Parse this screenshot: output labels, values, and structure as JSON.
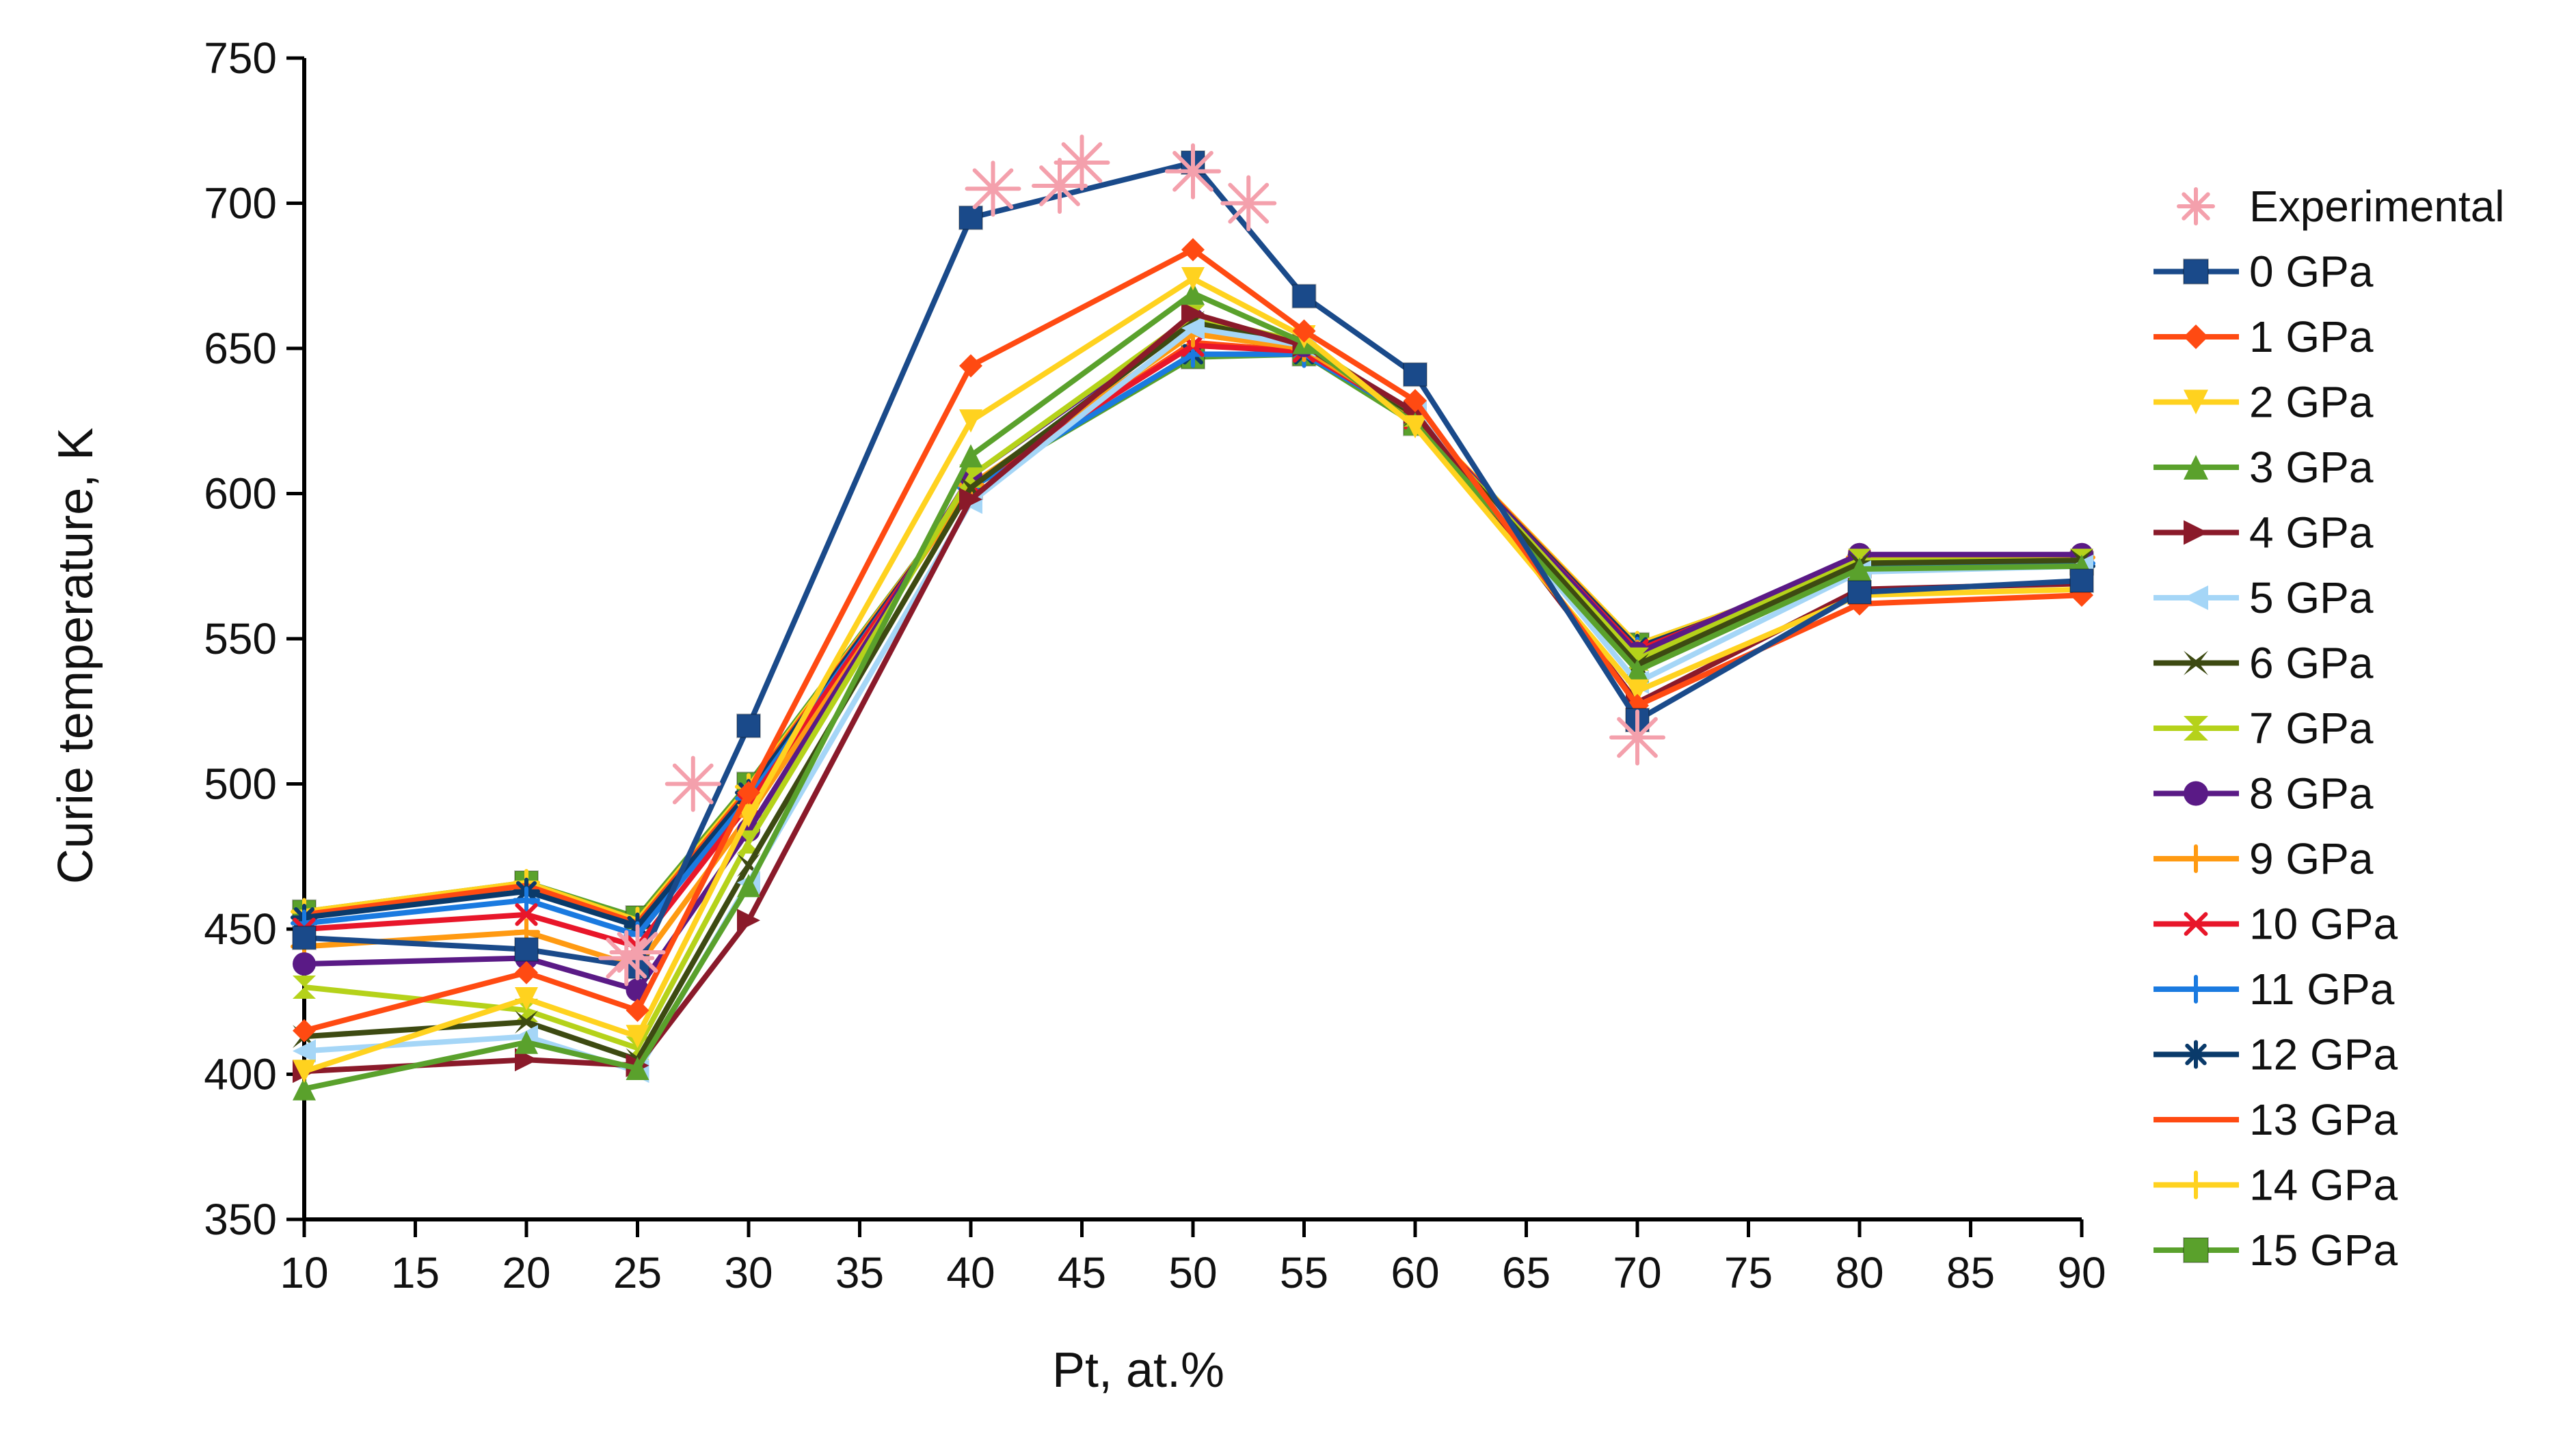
{
  "chart_data": {
    "type": "line",
    "title": "",
    "xlabel": "Pt, at.%",
    "ylabel": "Curie temperature, K",
    "xlim": [
      10,
      90
    ],
    "ylim": [
      350,
      750
    ],
    "xticks": [
      "10",
      "15",
      "20",
      "25",
      "30",
      "35",
      "40",
      "45",
      "50",
      "55",
      "60",
      "65",
      "70",
      "75",
      "80",
      "85",
      "90"
    ],
    "yticks": [
      "350",
      "400",
      "450",
      "500",
      "550",
      "600",
      "650",
      "700",
      "750"
    ],
    "grid": false,
    "legend_position": "right",
    "x": [
      10,
      20,
      25,
      30,
      40,
      50,
      55,
      60,
      70,
      80,
      90
    ],
    "experimental": {
      "name": "Experimental",
      "color": "#f4a0ac",
      "marker": "asterisk",
      "points": [
        [
          27.5,
          500
        ],
        [
          24.5,
          440
        ],
        [
          25,
          442
        ],
        [
          41,
          705
        ],
        [
          44,
          706
        ],
        [
          45,
          714
        ],
        [
          50,
          711
        ],
        [
          52.5,
          700
        ],
        [
          70,
          516
        ]
      ]
    },
    "series": [
      {
        "name": "0 GPa",
        "color": "#1a4a8a",
        "marker": "square",
        "values": [
          447,
          443,
          437,
          520,
          695,
          714,
          668,
          641,
          522,
          566,
          570
        ]
      },
      {
        "name": "1 GPa",
        "color": "#ff4a12",
        "marker": "diamond",
        "values": [
          415,
          435,
          422,
          497,
          644,
          684,
          656,
          632,
          527,
          562,
          565
        ]
      },
      {
        "name": "2 GPa",
        "color": "#ffd21f",
        "marker": "triangle-down",
        "values": [
          401,
          426,
          413,
          489,
          625,
          674,
          654,
          623,
          532,
          565,
          567
        ]
      },
      {
        "name": "3 GPa",
        "color": "#5aa12c",
        "marker": "triangle-up",
        "values": [
          395,
          411,
          402,
          465,
          613,
          669,
          652,
          624,
          539,
          574,
          575
        ]
      },
      {
        "name": "4 GPa",
        "color": "#8a1a2a",
        "marker": "triangle-right",
        "values": [
          401,
          405,
          403,
          453,
          598,
          662,
          651,
          628,
          528,
          567,
          569
        ]
      },
      {
        "name": "5 GPa",
        "color": "#a5d6f7",
        "marker": "triangle-left",
        "values": [
          408,
          413,
          401,
          466,
          597,
          657,
          651,
          628,
          535,
          573,
          575
        ]
      },
      {
        "name": "6 GPa",
        "color": "#3d4a12",
        "marker": "x-cross",
        "values": [
          413,
          418,
          405,
          472,
          602,
          659,
          651,
          627,
          541,
          576,
          577
        ]
      },
      {
        "name": "7 GPa",
        "color": "#b5d21a",
        "marker": "hourglass",
        "values": [
          430,
          422,
          409,
          480,
          606,
          661,
          652,
          627,
          543,
          577,
          577
        ]
      },
      {
        "name": "8 GPa",
        "color": "#5a1a86",
        "marker": "circle",
        "values": [
          438,
          440,
          429,
          484,
          606,
          660,
          651,
          627,
          545,
          579,
          579
        ]
      },
      {
        "name": "9 GPa",
        "color": "#ff9a12",
        "marker": "plus",
        "values": [
          444,
          449,
          437,
          489,
          603,
          655,
          650,
          626,
          545,
          578,
          578
        ]
      },
      {
        "name": "10 GPa",
        "color": "#e8162a",
        "marker": "x",
        "values": [
          450,
          455,
          444,
          493,
          603,
          651,
          649,
          626,
          546,
          577,
          577
        ]
      },
      {
        "name": "11 GPa",
        "color": "#1a7ae0",
        "marker": "plus",
        "values": [
          452,
          460,
          448,
          495,
          602,
          648,
          648,
          626,
          546,
          576,
          576
        ]
      },
      {
        "name": "12 GPa",
        "color": "#0a3a6a",
        "marker": "asterisk",
        "values": [
          454,
          463,
          451,
          497,
          602,
          648,
          648,
          626,
          547,
          575,
          575
        ]
      },
      {
        "name": "13 GPa",
        "color": "#ff4a12",
        "marker": "none",
        "values": [
          455,
          465,
          452,
          498,
          602,
          652,
          649,
          627,
          547,
          575,
          575
        ]
      },
      {
        "name": "14 GPa",
        "color": "#ffd21f",
        "marker": "plus",
        "values": [
          456,
          466,
          453,
          499,
          602,
          655,
          650,
          627,
          548,
          575,
          575
        ]
      },
      {
        "name": "15 GPa",
        "color": "#5aa12c",
        "marker": "square",
        "values": [
          456,
          466,
          454,
          500,
          602,
          647,
          648,
          624,
          548,
          575,
          576
        ]
      }
    ]
  }
}
